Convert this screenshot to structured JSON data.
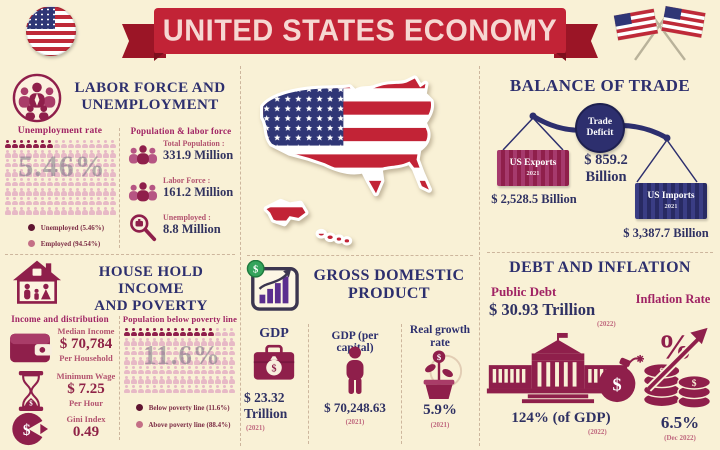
{
  "header": {
    "title": "UNITED STATES ECONOMY"
  },
  "labor": {
    "title_line1": "LABOR FORCE AND",
    "title_line2": "UNEMPLOYMENT",
    "unemployment": {
      "subtitle": "Unemployment rate",
      "watermark": "5.46%",
      "grid": {
        "cols": 16,
        "rows": 8,
        "highlighted": 7,
        "dark_color": "#8f1f4b",
        "light_color": "#e7b9c6"
      },
      "legend": [
        {
          "label": "Unemployed (5.46%)",
          "color": "#5f1430"
        },
        {
          "label": "Employed (94.54%)",
          "color": "#c46f86"
        }
      ]
    },
    "population": {
      "subtitle": "Population & labor force",
      "stats": [
        {
          "label": "Total Population :",
          "value": "331.9 Million"
        },
        {
          "label": "Labor Force :",
          "value": "161.2 Million"
        },
        {
          "label": "Unemployed :",
          "value": "8.8 Million"
        }
      ]
    }
  },
  "household": {
    "title_line1": "HOUSE HOLD INCOME",
    "title_line2": "AND POVERTY",
    "income": {
      "subtitle": "Income and distribution",
      "stats": [
        {
          "label": "Median Income",
          "value": "$ 70,784",
          "sub": "Per Household"
        },
        {
          "label": "Minimum Wage",
          "value": "$ 7.25",
          "sub": "Per Hour"
        },
        {
          "label": "Gini Index",
          "value": "0.49",
          "sub": ""
        }
      ]
    },
    "poverty": {
      "subtitle": "Population below poverty line",
      "watermark": "11.6%",
      "grid": {
        "cols": 16,
        "rows": 7,
        "highlighted": 13,
        "dark_color": "#8f1f4b",
        "light_color": "#e7b9c6"
      },
      "legend": [
        {
          "label": "Below poverty line (11.6%)",
          "color": "#5f1430"
        },
        {
          "label": "Above poverty line (88.4%)",
          "color": "#c46f86"
        }
      ]
    }
  },
  "gdp": {
    "title_line1": "GROSS DOMESTIC",
    "title_line2": "PRODUCT",
    "stats": [
      {
        "label": "GDP",
        "value_line1": "$ 23.32",
        "value_line2": "Trillion",
        "year": "(2021)"
      },
      {
        "label": "GDP (per capital)",
        "value_line1": "$ 70,248.63",
        "value_line2": "",
        "year": "(2021)"
      },
      {
        "label": "Real growth rate",
        "value_line1": "5.9%",
        "value_line2": "",
        "year": "(2021)"
      }
    ]
  },
  "trade": {
    "title": "BALANCE OF TRADE",
    "deficit": {
      "label_line1": "Trade",
      "label_line2": "Deficit",
      "value_line1": "$ 859.2",
      "value_line2": "Billion"
    },
    "exports": {
      "box_label": "US Exports",
      "box_year": "2021",
      "value": "$ 2,528.5 Billion"
    },
    "imports": {
      "box_label": "US Imports",
      "box_year": "2021",
      "value": "$ 3,387.7 Billion"
    }
  },
  "debt": {
    "title": "DEBT AND INFLATION",
    "public_debt": {
      "label": "Public Debt",
      "value": "$ 30.93 Trillion",
      "year": "(2022)",
      "share_value": "124% (of GDP)",
      "share_year": "(2022)"
    },
    "inflation": {
      "label": "Inflation Rate",
      "value": "6.5%",
      "year": "(Dec 2022)"
    }
  },
  "chart_data": [
    {
      "type": "pie",
      "title": "Unemployment rate",
      "slices": [
        {
          "label": "Unemployed",
          "value": 5.46
        },
        {
          "label": "Employed",
          "value": 94.54
        }
      ],
      "unit": "%"
    },
    {
      "type": "table",
      "title": "Population & labor force",
      "rows": [
        [
          "Total Population",
          "331.9 Million"
        ],
        [
          "Labor Force",
          "161.2 Million"
        ],
        [
          "Unemployed",
          "8.8 Million"
        ]
      ]
    },
    {
      "type": "table",
      "title": "Income and distribution",
      "rows": [
        [
          "Median Income (Per Household)",
          "$ 70,784"
        ],
        [
          "Minimum Wage (Per Hour)",
          "$ 7.25"
        ],
        [
          "Gini Index",
          "0.49"
        ]
      ]
    },
    {
      "type": "pie",
      "title": "Population below poverty line",
      "slices": [
        {
          "label": "Below poverty line",
          "value": 11.6
        },
        {
          "label": "Above poverty line",
          "value": 88.4
        }
      ],
      "unit": "%"
    },
    {
      "type": "table",
      "title": "Gross Domestic Product",
      "rows": [
        [
          "GDP (2021)",
          "$ 23.32 Trillion"
        ],
        [
          "GDP per capital (2021)",
          "$ 70,248.63"
        ],
        [
          "Real growth rate (2021)",
          "5.9%"
        ]
      ]
    },
    {
      "type": "bar",
      "title": "Balance of Trade (2021)",
      "ylabel": "USD Billion",
      "categories": [
        "US Exports",
        "US Imports",
        "Trade Deficit"
      ],
      "values": [
        2528.5,
        3387.7,
        859.2
      ]
    },
    {
      "type": "table",
      "title": "Debt and Inflation",
      "rows": [
        [
          "Public Debt (2022)",
          "$ 30.93 Trillion"
        ],
        [
          "Public Debt % of GDP (2022)",
          "124%"
        ],
        [
          "Inflation Rate (Dec 2022)",
          "6.5%"
        ]
      ]
    }
  ]
}
